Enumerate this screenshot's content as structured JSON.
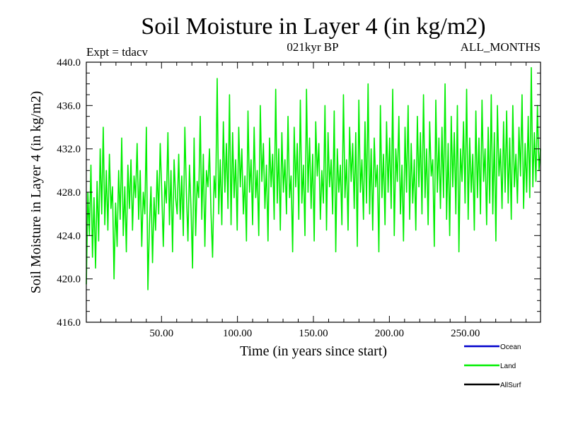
{
  "chart_data": {
    "type": "line",
    "title": "Soil Moisture in Layer 4 (in kg/m2)",
    "subtitle_left": "Expt = tdacv",
    "subtitle_center": "021kyr BP",
    "subtitle_right": "ALL_MONTHS",
    "xlabel": "Time (in years since start)",
    "ylabel": "Soil Moisture in Layer 4 (in kg/m2)",
    "xlim": [
      0.5,
      299.5
    ],
    "ylim": [
      416.0,
      440.0
    ],
    "xticks": [
      50,
      100,
      150,
      200,
      250
    ],
    "xtick_labels": [
      "50.00",
      "100.00",
      "150.00",
      "200.00",
      "250.00"
    ],
    "yticks": [
      416,
      420,
      424,
      428,
      432,
      436,
      440
    ],
    "ytick_labels": [
      "416.0",
      "420.0",
      "424.0",
      "428.0",
      "432.0",
      "436.0",
      "440.0"
    ],
    "legend_position": "bottom-right",
    "series": [
      {
        "name": "Ocean",
        "color": "#0000cc",
        "values": []
      },
      {
        "name": "Land",
        "color": "#00ee00",
        "values": [
          419.5,
          428.0,
          424.0,
          430.5,
          422.0,
          427.5,
          421.0,
          429.0,
          423.5,
          432.0,
          426.0,
          434.0,
          425.0,
          430.0,
          424.5,
          431.5,
          426.5,
          428.5,
          420.0,
          427.0,
          423.0,
          430.0,
          425.5,
          433.0,
          424.0,
          428.5,
          422.5,
          430.5,
          426.5,
          431.0,
          424.5,
          429.5,
          427.5,
          432.5,
          425.5,
          430.0,
          423.0,
          428.0,
          426.0,
          434.0,
          419.0,
          425.0,
          428.5,
          421.5,
          427.5,
          424.5,
          430.0,
          426.0,
          432.5,
          428.0,
          423.0,
          429.0,
          427.0,
          433.5,
          425.0,
          430.0,
          422.5,
          431.0,
          427.5,
          426.0,
          431.5,
          425.5,
          429.5,
          424.0,
          434.0,
          428.0,
          423.5,
          430.5,
          426.5,
          421.0,
          433.0,
          424.0,
          429.0,
          427.5,
          435.0,
          425.5,
          431.5,
          423.0,
          430.0,
          428.5,
          432.0,
          426.0,
          422.0,
          429.5,
          427.5,
          438.5,
          426.0,
          431.0,
          425.0,
          434.5,
          428.0,
          432.5,
          426.5,
          437.0,
          425.0,
          433.5,
          427.5,
          431.0,
          424.5,
          434.0,
          428.5,
          432.0,
          426.0,
          429.5,
          423.5,
          435.5,
          428.0,
          431.0,
          425.0,
          434.0,
          427.5,
          430.0,
          424.0,
          436.0,
          429.0,
          432.5,
          426.5,
          430.5,
          423.5,
          433.0,
          428.5,
          431.5,
          425.5,
          437.5,
          427.0,
          432.0,
          424.5,
          433.5,
          428.0,
          431.0,
          426.0,
          435.0,
          427.5,
          429.5,
          422.5,
          434.0,
          428.5,
          432.5,
          425.5,
          436.5,
          427.0,
          430.5,
          424.0,
          437.5,
          428.0,
          433.0,
          426.5,
          431.5,
          423.5,
          434.5,
          429.5,
          432.5,
          425.5,
          430.0,
          427.0,
          436.0,
          424.5,
          433.5,
          428.5,
          431.0,
          426.0,
          435.5,
          422.5,
          432.0,
          428.0,
          430.5,
          425.0,
          437.0,
          427.5,
          431.0,
          424.5,
          434.0,
          429.0,
          432.5,
          426.5,
          433.5,
          423.0,
          436.5,
          428.0,
          431.0,
          425.5,
          434.5,
          427.0,
          438.0,
          426.0,
          432.0,
          424.5,
          433.0,
          428.5,
          430.5,
          422.5,
          436.0,
          427.5,
          431.5,
          425.0,
          434.5,
          428.0,
          433.0,
          426.5,
          437.5,
          424.0,
          432.0,
          429.0,
          435.0,
          426.0,
          430.5,
          423.5,
          434.0,
          428.0,
          436.0,
          425.5,
          432.5,
          427.0,
          431.0,
          424.5,
          435.0,
          428.5,
          433.5,
          426.0,
          437.0,
          427.5,
          432.0,
          425.0,
          434.5,
          429.5,
          431.0,
          423.0,
          436.5,
          428.0,
          433.0,
          426.5,
          434.0,
          427.5,
          438.0,
          425.5,
          432.5,
          424.0,
          435.0,
          428.5,
          433.5,
          426.0,
          436.0,
          422.5,
          432.0,
          429.0,
          434.5,
          427.0,
          437.5,
          425.5,
          433.0,
          428.0,
          431.5,
          424.5,
          435.5,
          427.5,
          433.0,
          426.0,
          436.5,
          429.0,
          432.0,
          425.0,
          434.0,
          427.0,
          437.0,
          426.0,
          433.5,
          423.5,
          436.0,
          429.5,
          432.0,
          426.5,
          434.5,
          428.0,
          435.5,
          427.0,
          433.0,
          425.5,
          436.0,
          428.5,
          431.5,
          427.0,
          434.0,
          429.5,
          437.0,
          426.5,
          432.5,
          428.0,
          435.0,
          427.5,
          439.5,
          428.5,
          433.5,
          429.0,
          436.0,
          430.0,
          432.0
        ]
      },
      {
        "name": "AllSurf",
        "color": "#000000",
        "values": []
      }
    ]
  }
}
